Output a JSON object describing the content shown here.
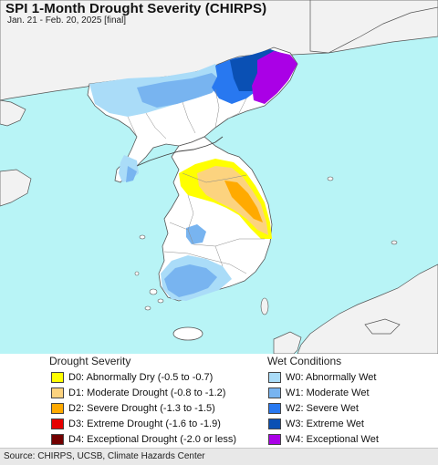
{
  "header": {
    "title": "SPI 1-Month Drought Severity (CHIRPS)",
    "subtitle": "Jan. 21 - Feb. 20, 2025 [final]"
  },
  "colors": {
    "ocean": "#b8f4f6",
    "land_neighbor": "#f2f2f2",
    "land_korea": "#ffffff",
    "border": "#555555"
  },
  "legend": {
    "drought_title": "Drought Severity",
    "wet_title": "Wet Conditions",
    "drought": [
      {
        "label": "D0: Abnormally Dry (-0.5 to -0.7)",
        "color": "#ffff00"
      },
      {
        "label": "D1: Moderate Drought (-0.8 to -1.2)",
        "color": "#fcd37f"
      },
      {
        "label": "D2: Severe Drought (-1.3 to -1.5)",
        "color": "#ffaa00"
      },
      {
        "label": "D3: Extreme Drought (-1.6 to -1.9)",
        "color": "#e60000"
      },
      {
        "label": "D4: Exceptional Drought (-2.0 or less)",
        "color": "#730000"
      }
    ],
    "wet": [
      {
        "label": "W0: Abnormally Wet",
        "color": "#aadcf8"
      },
      {
        "label": "W1: Moderate Wet",
        "color": "#78b4f0"
      },
      {
        "label": "W2: Severe Wet",
        "color": "#2878f0"
      },
      {
        "label": "W3: Extreme Wet",
        "color": "#0a50b4"
      },
      {
        "label": "W4: Exceptional Wet",
        "color": "#aa00e6"
      }
    ]
  },
  "footer": {
    "source": "Source: CHIRPS, UCSB, Climate Hazards Center"
  }
}
